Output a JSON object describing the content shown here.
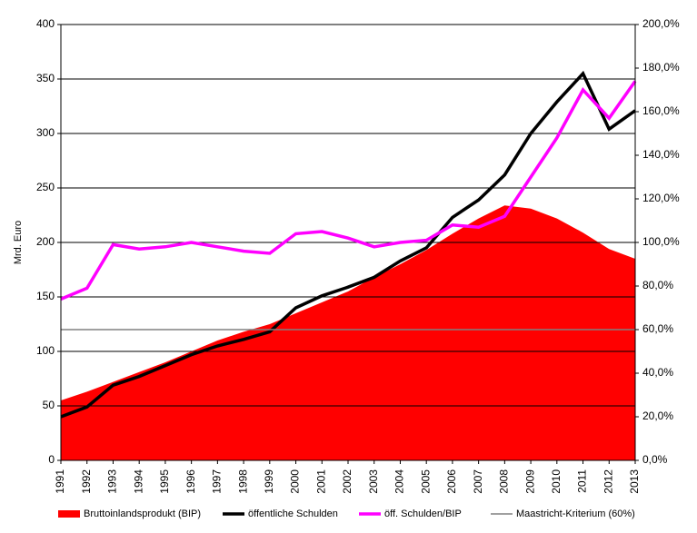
{
  "chart_data": {
    "type": "line",
    "ylabel": "Mrd. Euro",
    "categories": [
      "1991",
      "1992",
      "1993",
      "1994",
      "1995",
      "1996",
      "1997",
      "1998",
      "1999",
      "2000",
      "2001",
      "2002",
      "2003",
      "2004",
      "2005",
      "2006",
      "2007",
      "2008",
      "2009",
      "2010",
      "2011",
      "2012",
      "2013"
    ],
    "series": [
      {
        "name": "Bruttoinlandsprodukt (BIP)",
        "type": "area",
        "color": "#ff0000",
        "values": [
          55,
          63,
          72,
          81,
          90,
          100,
          110,
          118,
          125,
          135,
          145,
          155,
          168,
          180,
          193,
          208,
          222,
          234,
          231,
          222,
          209,
          194,
          185
        ]
      },
      {
        "name": "öffentliche Schulden",
        "type": "line",
        "color": "#000000",
        "values": [
          40,
          49,
          69,
          77,
          87,
          97,
          105,
          111,
          118,
          140,
          151,
          159,
          168,
          183,
          195,
          223,
          239,
          262,
          300,
          329,
          355,
          304,
          321
        ]
      },
      {
        "name": "öff. Schulden/BIP",
        "type": "line",
        "color": "#ff00ff",
        "axis": "y2",
        "values": [
          74,
          79,
          99,
          97,
          98,
          100,
          98,
          96,
          95,
          104,
          105,
          102,
          98,
          100,
          101,
          108,
          107,
          112,
          130,
          148,
          170,
          157,
          174
        ]
      },
      {
        "name": "Maastricht-Kriterium (60%)",
        "type": "line",
        "color": "#808080",
        "axis": "y2",
        "values": [
          60,
          60,
          60,
          60,
          60,
          60,
          60,
          60,
          60,
          60,
          60,
          60,
          60,
          60,
          60,
          60,
          60,
          60,
          60,
          60,
          60,
          60,
          60
        ]
      }
    ],
    "ylim": [
      0,
      400
    ],
    "yticks": [
      0,
      50,
      100,
      150,
      200,
      250,
      300,
      350,
      400
    ],
    "y2lim": [
      0,
      200
    ],
    "y2ticks": [
      {
        "value": 0,
        "label": "0,0%"
      },
      {
        "value": 20,
        "label": "20,0%"
      },
      {
        "value": 40,
        "label": "40,0%"
      },
      {
        "value": 60,
        "label": "60,0%"
      },
      {
        "value": 80,
        "label": "80,0%"
      },
      {
        "value": 100,
        "label": "100,0%"
      },
      {
        "value": 120,
        "label": "120,0%"
      },
      {
        "value": 140,
        "label": "140,0%"
      },
      {
        "value": 160,
        "label": "160,0%"
      },
      {
        "value": 180,
        "label": "180,0%"
      },
      {
        "value": 200,
        "label": "200,0%"
      }
    ],
    "grid": true
  }
}
